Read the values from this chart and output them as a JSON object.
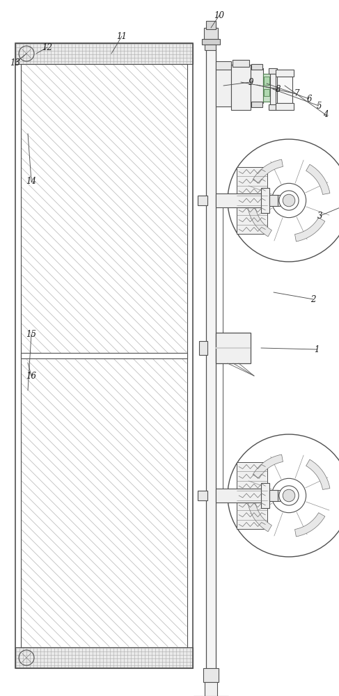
{
  "bg_color": "#ffffff",
  "line_color": "#505050",
  "gray1": "#e8e8e8",
  "gray2": "#d8d8d8",
  "gray3": "#c8c8c8",
  "green1": "#90c890",
  "purple1": "#c090c0",
  "figw": 4.87,
  "figh": 10.0,
  "dpi": 100
}
